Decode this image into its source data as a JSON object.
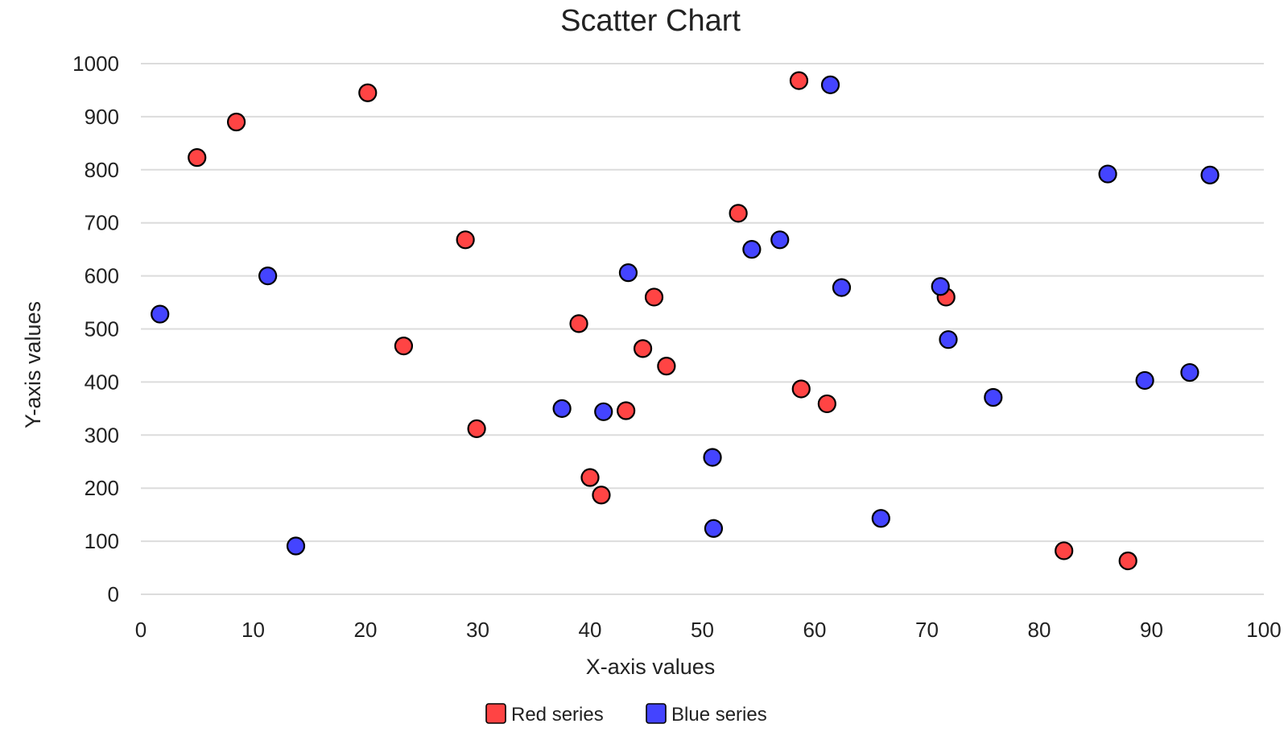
{
  "chart_data": {
    "type": "scatter",
    "title": "Scatter Chart",
    "xlabel": "X-axis values",
    "ylabel": "Y-axis values",
    "xlim": [
      0,
      100
    ],
    "ylim": [
      0,
      1000
    ],
    "xticks": [
      "0",
      "10",
      "20",
      "30",
      "40",
      "50",
      "60",
      "70",
      "80",
      "90",
      "100"
    ],
    "yticks": [
      "0",
      "100",
      "200",
      "300",
      "400",
      "500",
      "600",
      "700",
      "800",
      "900",
      "1000"
    ],
    "grid": "horizontal",
    "legend_position": "bottom-center",
    "series": [
      {
        "name": "Red series",
        "color": "#ff4444",
        "points": [
          [
            5,
            823
          ],
          [
            8.5,
            890
          ],
          [
            20.2,
            945
          ],
          [
            23.4,
            468
          ],
          [
            28.9,
            668
          ],
          [
            29.9,
            312
          ],
          [
            39,
            510
          ],
          [
            40,
            220
          ],
          [
            41,
            187
          ],
          [
            43.2,
            346
          ],
          [
            44.7,
            463
          ],
          [
            45.7,
            560
          ],
          [
            46.8,
            430
          ],
          [
            53.2,
            718
          ],
          [
            58.6,
            968
          ],
          [
            58.8,
            387
          ],
          [
            61.1,
            359
          ],
          [
            71.7,
            560
          ],
          [
            82.2,
            82
          ],
          [
            87.9,
            63
          ]
        ]
      },
      {
        "name": "Blue series",
        "color": "#4444ff",
        "points": [
          [
            1.7,
            528
          ],
          [
            11.3,
            600
          ],
          [
            13.8,
            91
          ],
          [
            37.5,
            350
          ],
          [
            41.2,
            344
          ],
          [
            43.4,
            606
          ],
          [
            50.9,
            258
          ],
          [
            51,
            124
          ],
          [
            54.4,
            650
          ],
          [
            56.9,
            668
          ],
          [
            61.4,
            960
          ],
          [
            62.4,
            578
          ],
          [
            65.9,
            143
          ],
          [
            71.2,
            580
          ],
          [
            71.9,
            480
          ],
          [
            75.9,
            371
          ],
          [
            86.1,
            792
          ],
          [
            89.4,
            403
          ],
          [
            93.4,
            418
          ],
          [
            95.2,
            790
          ]
        ]
      }
    ]
  }
}
